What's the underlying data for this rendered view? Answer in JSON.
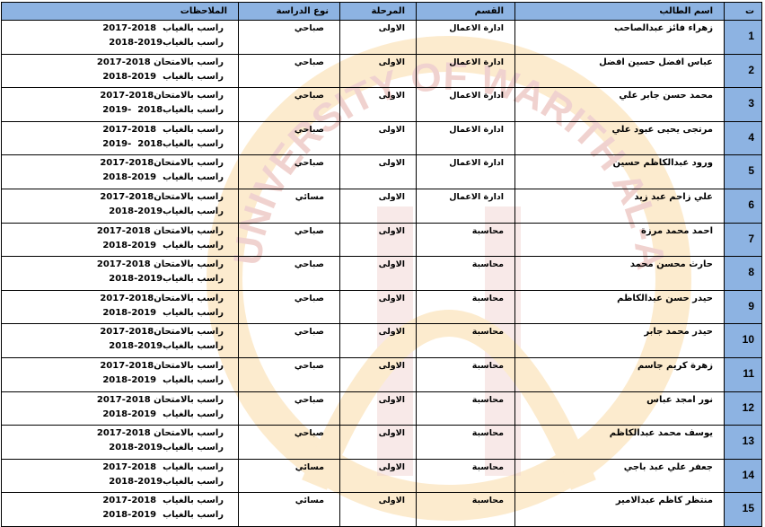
{
  "watermark": {
    "text": "UNIVERSITY OF WARITH AL-ANBIYA'A",
    "color": "#f5a623",
    "accent": "#c0392b"
  },
  "colors": {
    "header_bg": "#8db3e2",
    "number_col_bg": "#8db3e2"
  },
  "headers": {
    "number": "ت",
    "name": "اسم الطالب",
    "department": "القسم",
    "stage": "المرحلة",
    "study_type": "نوع الدراسة",
    "notes": "الملاحظات"
  },
  "rows": [
    {
      "number": "1",
      "name": "زهراء فائز عبدالصاحب",
      "department": "ادارة الاعمال",
      "stage": "الاولى",
      "study_type": "صباحي",
      "note1": "راسب بالغياب  2018-2017",
      "note2": "راسب بالغياب2019-2018"
    },
    {
      "number": "2",
      "name": "عباس افضل حسين افضل",
      "department": "ادارة الاعمال",
      "stage": "الاولى",
      "study_type": "صباحي",
      "note1": "راسب بالامتحان 2018-2017",
      "note2": "راسب بالغياب  2019-2018"
    },
    {
      "number": "3",
      "name": "محمد حسن جابر علي",
      "department": "ادارة الاعمال",
      "stage": "الاولى",
      "study_type": "صباحي",
      "note1": "راسب بالامتحان2018-2017",
      "note2": "راسب بالغياب2018  -2019"
    },
    {
      "number": "4",
      "name": "مرتجى يحيى عبود علي",
      "department": "ادارة الاعمال",
      "stage": "الاولى",
      "study_type": "صباحي",
      "note1": "راسب بالغياب  2018-2017",
      "note2": "راسب بالغياب2018  -2019"
    },
    {
      "number": "5",
      "name": "ورود عبدالكاظم حسين",
      "department": "ادارة الاعمال",
      "stage": "الاولى",
      "study_type": "صباحي",
      "note1": "راسب بالامتحان2018-2017",
      "note2": "راسب بالغياب  2019-2018"
    },
    {
      "number": "6",
      "name": "علي زاحم عبد زيد",
      "department": "ادارة الاعمال",
      "stage": "الاولى",
      "study_type": "مسائي",
      "note1": "راسب بالامتحان2018-2017",
      "note2": "راسب بالغياب2019-2018"
    },
    {
      "number": "7",
      "name": "احمد محمد مرزة",
      "department": "محاسبة",
      "stage": "الاولى",
      "study_type": "صباحي",
      "note1": "راسب بالامتحان 2018-2017",
      "note2": "راسب بالغياب  2019-2018"
    },
    {
      "number": "8",
      "name": "حارث محسن محمد",
      "department": "محاسبة",
      "stage": "الاولى",
      "study_type": "صباحي",
      "note1": "راسب بالامتحان 2018-2017",
      "note2": "راسب بالغياب2019-2018"
    },
    {
      "number": "9",
      "name": "حيدر حسن عبدالكاظم",
      "department": "محاسبة",
      "stage": "الاولى",
      "study_type": "صباحي",
      "note1": "راسب بالامتحان2018-2017",
      "note2": "راسب بالغياب  2019-2018"
    },
    {
      "number": "10",
      "name": "حيدر محمد جابر",
      "department": "محاسبة",
      "stage": "الاولى",
      "study_type": "صباحي",
      "note1": "راسب بالامتحان2018-2017",
      "note2": "راسب بالغياب2019-2018"
    },
    {
      "number": "11",
      "name": "زهرة كريم جاسم",
      "department": "محاسبة",
      "stage": "الاولى",
      "study_type": "صباحي",
      "note1": "راسب بالامتحان2018-2017",
      "note2": "راسب بالغياب  2019-2018"
    },
    {
      "number": "12",
      "name": "نور امجد عباس",
      "department": "محاسبة",
      "stage": "الاولى",
      "study_type": "صباحي",
      "note1": "راسب بالامتحان 2018-2017",
      "note2": "راسب بالغياب  2019-2018"
    },
    {
      "number": "13",
      "name": "يوسف محمد عبدالكاظم",
      "department": "محاسبة",
      "stage": "الاولى",
      "study_type": "صباحي",
      "note1": "راسب بالامتحان 2018-2017",
      "note2": "راسب بالغياب2019-2018"
    },
    {
      "number": "14",
      "name": "جعفر علي عبد باجي",
      "department": "محاسبة",
      "stage": "الاولى",
      "study_type": "مسائي",
      "note1": "راسب بالغياب  2018-2017",
      "note2": "راسب بالغياب2019-2018"
    },
    {
      "number": "15",
      "name": "منتظر كاظم عبدالامير",
      "department": "محاسبة",
      "stage": "الاولى",
      "study_type": "مسائي",
      "note1": "راسب بالغياب  2018-2017",
      "note2": "راسب بالغياب  2019-2018"
    }
  ]
}
